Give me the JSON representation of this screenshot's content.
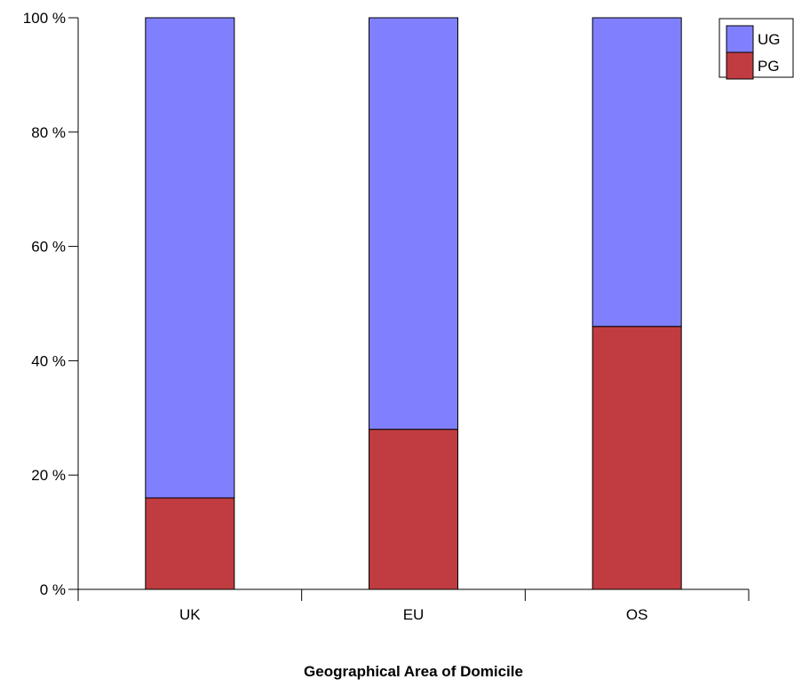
{
  "chart_data": {
    "type": "bar",
    "stacked": true,
    "categories": [
      "UK",
      "EU",
      "OS"
    ],
    "series": [
      {
        "name": "PG",
        "values": [
          16,
          28,
          46
        ],
        "color": "#c03c40"
      },
      {
        "name": "UG",
        "values": [
          84,
          72,
          54
        ],
        "color": "#8080ff"
      }
    ],
    "xlabel": "Geographical Area of Domicile",
    "ylabel": "",
    "ylim": [
      0,
      100
    ],
    "yticks": [
      0,
      20,
      40,
      60,
      80,
      100
    ],
    "ytick_labels": [
      "0 %",
      "20 %",
      "40 %",
      "60 %",
      "80 %",
      "100 %"
    ],
    "legend": {
      "position": "top-right",
      "entries": [
        {
          "label": "UG",
          "color": "#8080ff"
        },
        {
          "label": "PG",
          "color": "#c03c40"
        }
      ]
    },
    "grid": false
  }
}
